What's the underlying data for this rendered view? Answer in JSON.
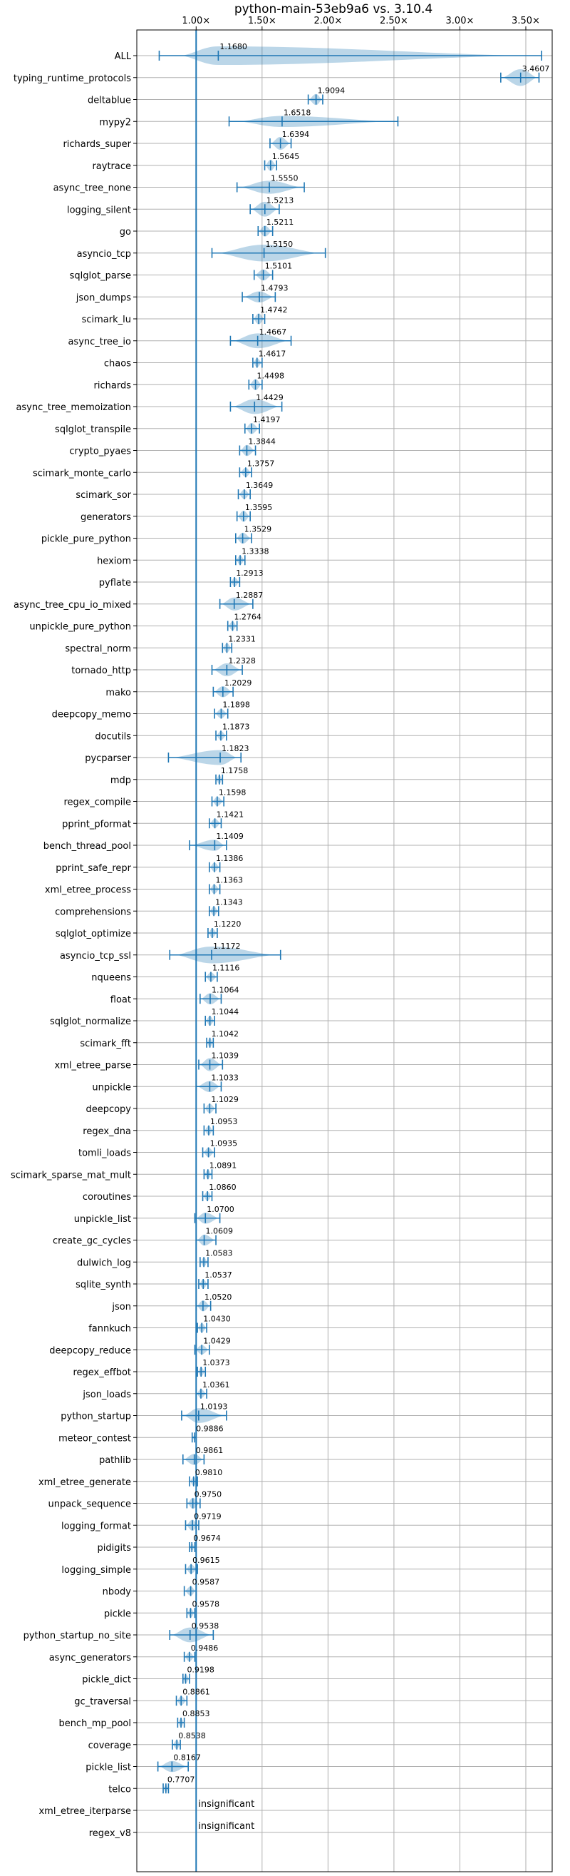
{
  "chart_data": {
    "type": "violin",
    "title": "python-main-53eb9a6 vs. 3.10.4",
    "xlabel": "",
    "ylabel": "",
    "xlim": [
      0.55,
      3.7
    ],
    "x_ticks": [
      1.0,
      1.5,
      2.0,
      2.5,
      3.0,
      3.5
    ],
    "x_tick_labels": [
      "1.00×",
      "1.50×",
      "2.00×",
      "2.50×",
      "3.00×",
      "3.50×"
    ],
    "reference_line": 1.0,
    "grid": true,
    "categories": [
      {
        "name": "ALL",
        "value": 1.168,
        "label": "1.1680",
        "min": 0.72,
        "max": 3.62,
        "width": 1.0
      },
      {
        "name": "typing_runtime_protocols",
        "value": 3.4607,
        "label": "3.4607",
        "min": 3.31,
        "max": 3.6,
        "width": 0.9
      },
      {
        "name": "deltablue",
        "value": 1.9094,
        "label": "1.9094",
        "min": 1.85,
        "max": 1.96,
        "width": 0.6
      },
      {
        "name": "mypy2",
        "value": 1.6518,
        "label": "1.6518",
        "min": 1.25,
        "max": 2.53,
        "width": 0.6
      },
      {
        "name": "richards_super",
        "value": 1.6394,
        "label": "1.6394",
        "min": 1.56,
        "max": 1.72,
        "width": 0.7
      },
      {
        "name": "raytrace",
        "value": 1.5645,
        "label": "1.5645",
        "min": 1.52,
        "max": 1.61,
        "width": 0.6
      },
      {
        "name": "async_tree_none",
        "value": 1.555,
        "label": "1.5550",
        "min": 1.31,
        "max": 1.82,
        "width": 0.7
      },
      {
        "name": "logging_silent",
        "value": 1.5213,
        "label": "1.5213",
        "min": 1.41,
        "max": 1.63,
        "width": 0.8
      },
      {
        "name": "go",
        "value": 1.5211,
        "label": "1.5211",
        "min": 1.47,
        "max": 1.58,
        "width": 0.6
      },
      {
        "name": "asyncio_tcp",
        "value": 1.515,
        "label": "1.5150",
        "min": 1.12,
        "max": 1.98,
        "width": 0.9
      },
      {
        "name": "sqlglot_parse",
        "value": 1.5101,
        "label": "1.5101",
        "min": 1.44,
        "max": 1.58,
        "width": 0.6
      },
      {
        "name": "json_dumps",
        "value": 1.4793,
        "label": "1.4793",
        "min": 1.35,
        "max": 1.6,
        "width": 0.6
      },
      {
        "name": "scimark_lu",
        "value": 1.4742,
        "label": "1.4742",
        "min": 1.43,
        "max": 1.52,
        "width": 0.6
      },
      {
        "name": "async_tree_io",
        "value": 1.4667,
        "label": "1.4667",
        "min": 1.26,
        "max": 1.72,
        "width": 0.8
      },
      {
        "name": "chaos",
        "value": 1.4617,
        "label": "1.4617",
        "min": 1.43,
        "max": 1.5,
        "width": 0.5
      },
      {
        "name": "richards",
        "value": 1.4498,
        "label": "1.4498",
        "min": 1.4,
        "max": 1.5,
        "width": 0.6
      },
      {
        "name": "async_tree_memoization",
        "value": 1.4429,
        "label": "1.4429",
        "min": 1.26,
        "max": 1.65,
        "width": 0.8
      },
      {
        "name": "sqlglot_transpile",
        "value": 1.4197,
        "label": "1.4197",
        "min": 1.37,
        "max": 1.48,
        "width": 0.6
      },
      {
        "name": "crypto_pyaes",
        "value": 1.3844,
        "label": "1.3844",
        "min": 1.33,
        "max": 1.45,
        "width": 0.6
      },
      {
        "name": "scimark_monte_carlo",
        "value": 1.3757,
        "label": "1.3757",
        "min": 1.33,
        "max": 1.42,
        "width": 0.5
      },
      {
        "name": "scimark_sor",
        "value": 1.3649,
        "label": "1.3649",
        "min": 1.32,
        "max": 1.41,
        "width": 0.5
      },
      {
        "name": "generators",
        "value": 1.3595,
        "label": "1.3595",
        "min": 1.31,
        "max": 1.41,
        "width": 0.6
      },
      {
        "name": "pickle_pure_python",
        "value": 1.3529,
        "label": "1.3529",
        "min": 1.3,
        "max": 1.42,
        "width": 0.6
      },
      {
        "name": "hexiom",
        "value": 1.3338,
        "label": "1.3338",
        "min": 1.3,
        "max": 1.37,
        "width": 0.5
      },
      {
        "name": "pyflate",
        "value": 1.2913,
        "label": "1.2913",
        "min": 1.26,
        "max": 1.33,
        "width": 0.5
      },
      {
        "name": "async_tree_cpu_io_mixed",
        "value": 1.2887,
        "label": "1.2887",
        "min": 1.18,
        "max": 1.43,
        "width": 0.7
      },
      {
        "name": "unpickle_pure_python",
        "value": 1.2764,
        "label": "1.2764",
        "min": 1.24,
        "max": 1.31,
        "width": 0.5
      },
      {
        "name": "spectral_norm",
        "value": 1.2331,
        "label": "1.2331",
        "min": 1.2,
        "max": 1.27,
        "width": 0.5
      },
      {
        "name": "tornado_http",
        "value": 1.2328,
        "label": "1.2328",
        "min": 1.12,
        "max": 1.35,
        "width": 0.7
      },
      {
        "name": "mako",
        "value": 1.2029,
        "label": "1.2029",
        "min": 1.13,
        "max": 1.28,
        "width": 0.6
      },
      {
        "name": "deepcopy_memo",
        "value": 1.1898,
        "label": "1.1898",
        "min": 1.14,
        "max": 1.24,
        "width": 0.5
      },
      {
        "name": "docutils",
        "value": 1.1873,
        "label": "1.1873",
        "min": 1.15,
        "max": 1.23,
        "width": 0.5
      },
      {
        "name": "pycparser",
        "value": 1.1823,
        "label": "1.1823",
        "min": 0.79,
        "max": 1.34,
        "width": 0.8
      },
      {
        "name": "mdp",
        "value": 1.1758,
        "label": "1.1758",
        "min": 1.15,
        "max": 1.2,
        "width": 0.5
      },
      {
        "name": "regex_compile",
        "value": 1.1598,
        "label": "1.1598",
        "min": 1.12,
        "max": 1.21,
        "width": 0.5
      },
      {
        "name": "pprint_pformat",
        "value": 1.1421,
        "label": "1.1421",
        "min": 1.1,
        "max": 1.19,
        "width": 0.5
      },
      {
        "name": "bench_thread_pool",
        "value": 1.1409,
        "label": "1.1409",
        "min": 0.95,
        "max": 1.23,
        "width": 0.6
      },
      {
        "name": "pprint_safe_repr",
        "value": 1.1386,
        "label": "1.1386",
        "min": 1.1,
        "max": 1.18,
        "width": 0.5
      },
      {
        "name": "xml_etree_process",
        "value": 1.1363,
        "label": "1.1363",
        "min": 1.1,
        "max": 1.18,
        "width": 0.5
      },
      {
        "name": "comprehensions",
        "value": 1.1343,
        "label": "1.1343",
        "min": 1.1,
        "max": 1.17,
        "width": 0.5
      },
      {
        "name": "sqlglot_optimize",
        "value": 1.122,
        "label": "1.1220",
        "min": 1.09,
        "max": 1.16,
        "width": 0.5
      },
      {
        "name": "asyncio_tcp_ssl",
        "value": 1.1172,
        "label": "1.1172",
        "min": 0.8,
        "max": 1.64,
        "width": 0.9
      },
      {
        "name": "nqueens",
        "value": 1.1116,
        "label": "1.1116",
        "min": 1.07,
        "max": 1.16,
        "width": 0.5
      },
      {
        "name": "float",
        "value": 1.1064,
        "label": "1.1064",
        "min": 1.03,
        "max": 1.19,
        "width": 0.6
      },
      {
        "name": "sqlglot_normalize",
        "value": 1.1044,
        "label": "1.1044",
        "min": 1.07,
        "max": 1.14,
        "width": 0.5
      },
      {
        "name": "scimark_fft",
        "value": 1.1042,
        "label": "1.1042",
        "min": 1.08,
        "max": 1.13,
        "width": 0.5
      },
      {
        "name": "xml_etree_parse",
        "value": 1.1039,
        "label": "1.1039",
        "min": 1.02,
        "max": 1.2,
        "width": 0.7
      },
      {
        "name": "unpickle",
        "value": 1.1033,
        "label": "1.1033",
        "min": 1.0,
        "max": 1.19,
        "width": 0.6
      },
      {
        "name": "deepcopy",
        "value": 1.1029,
        "label": "1.1029",
        "min": 1.06,
        "max": 1.15,
        "width": 0.5
      },
      {
        "name": "regex_dna",
        "value": 1.0953,
        "label": "1.0953",
        "min": 1.06,
        "max": 1.13,
        "width": 0.5
      },
      {
        "name": "tomli_loads",
        "value": 1.0935,
        "label": "1.0935",
        "min": 1.05,
        "max": 1.14,
        "width": 0.5
      },
      {
        "name": "scimark_sparse_mat_mult",
        "value": 1.0891,
        "label": "1.0891",
        "min": 1.06,
        "max": 1.12,
        "width": 0.5
      },
      {
        "name": "coroutines",
        "value": 1.086,
        "label": "1.0860",
        "min": 1.05,
        "max": 1.12,
        "width": 0.5
      },
      {
        "name": "unpickle_list",
        "value": 1.07,
        "label": "1.0700",
        "min": 0.99,
        "max": 1.18,
        "width": 0.6
      },
      {
        "name": "create_gc_cycles",
        "value": 1.0609,
        "label": "1.0609",
        "min": 1.0,
        "max": 1.15,
        "width": 0.6
      },
      {
        "name": "dulwich_log",
        "value": 1.0583,
        "label": "1.0583",
        "min": 1.03,
        "max": 1.09,
        "width": 0.5
      },
      {
        "name": "sqlite_synth",
        "value": 1.0537,
        "label": "1.0537",
        "min": 1.02,
        "max": 1.09,
        "width": 0.5
      },
      {
        "name": "json",
        "value": 1.052,
        "label": "1.0520",
        "min": 1.0,
        "max": 1.11,
        "width": 0.6
      },
      {
        "name": "fannkuch",
        "value": 1.043,
        "label": "1.0430",
        "min": 1.01,
        "max": 1.08,
        "width": 0.5
      },
      {
        "name": "deepcopy_reduce",
        "value": 1.0429,
        "label": "1.0429",
        "min": 0.99,
        "max": 1.1,
        "width": 0.5
      },
      {
        "name": "regex_effbot",
        "value": 1.0373,
        "label": "1.0373",
        "min": 1.01,
        "max": 1.07,
        "width": 0.5
      },
      {
        "name": "json_loads",
        "value": 1.0361,
        "label": "1.0361",
        "min": 1.0,
        "max": 1.08,
        "width": 0.5
      },
      {
        "name": "python_startup",
        "value": 1.0193,
        "label": "1.0193",
        "min": 0.89,
        "max": 1.23,
        "width": 0.8
      },
      {
        "name": "meteor_contest",
        "value": 0.9886,
        "label": "0.9886",
        "min": 0.97,
        "max": 1.0,
        "width": 0.3
      },
      {
        "name": "pathlib",
        "value": 0.9861,
        "label": "0.9861",
        "min": 0.9,
        "max": 1.06,
        "width": 0.6
      },
      {
        "name": "xml_etree_generate",
        "value": 0.981,
        "label": "0.9810",
        "min": 0.95,
        "max": 1.01,
        "width": 0.5
      },
      {
        "name": "unpack_sequence",
        "value": 0.975,
        "label": "0.9750",
        "min": 0.93,
        "max": 1.03,
        "width": 0.6
      },
      {
        "name": "logging_format",
        "value": 0.9719,
        "label": "0.9719",
        "min": 0.92,
        "max": 1.02,
        "width": 0.6
      },
      {
        "name": "pidigits",
        "value": 0.9674,
        "label": "0.9674",
        "min": 0.95,
        "max": 0.99,
        "width": 0.4
      },
      {
        "name": "logging_simple",
        "value": 0.9615,
        "label": "0.9615",
        "min": 0.92,
        "max": 1.01,
        "width": 0.5
      },
      {
        "name": "nbody",
        "value": 0.9587,
        "label": "0.9587",
        "min": 0.91,
        "max": 1.0,
        "width": 0.5
      },
      {
        "name": "pickle",
        "value": 0.9578,
        "label": "0.9578",
        "min": 0.93,
        "max": 0.99,
        "width": 0.5
      },
      {
        "name": "python_startup_no_site",
        "value": 0.9538,
        "label": "0.9538",
        "min": 0.8,
        "max": 1.13,
        "width": 0.8
      },
      {
        "name": "async_generators",
        "value": 0.9486,
        "label": "0.9486",
        "min": 0.91,
        "max": 0.99,
        "width": 0.5
      },
      {
        "name": "pickle_dict",
        "value": 0.9198,
        "label": "0.9198",
        "min": 0.9,
        "max": 0.95,
        "width": 0.5
      },
      {
        "name": "gc_traversal",
        "value": 0.8861,
        "label": "0.8861",
        "min": 0.85,
        "max": 0.93,
        "width": 0.5
      },
      {
        "name": "bench_mp_pool",
        "value": 0.8853,
        "label": "0.8853",
        "min": 0.86,
        "max": 0.91,
        "width": 0.5
      },
      {
        "name": "coverage",
        "value": 0.8538,
        "label": "0.8538",
        "min": 0.82,
        "max": 0.88,
        "width": 0.5
      },
      {
        "name": "pickle_list",
        "value": 0.8167,
        "label": "0.8167",
        "min": 0.71,
        "max": 0.94,
        "width": 0.6
      },
      {
        "name": "telco",
        "value": 0.7707,
        "label": "0.7707",
        "min": 0.75,
        "max": 0.79,
        "width": 0.4
      },
      {
        "name": "xml_etree_iterparse",
        "value": null,
        "label": "insignificant",
        "min": null,
        "max": null,
        "width": 0
      },
      {
        "name": "regex_v8",
        "value": null,
        "label": "insignificant",
        "min": null,
        "max": null,
        "width": 0
      }
    ]
  }
}
